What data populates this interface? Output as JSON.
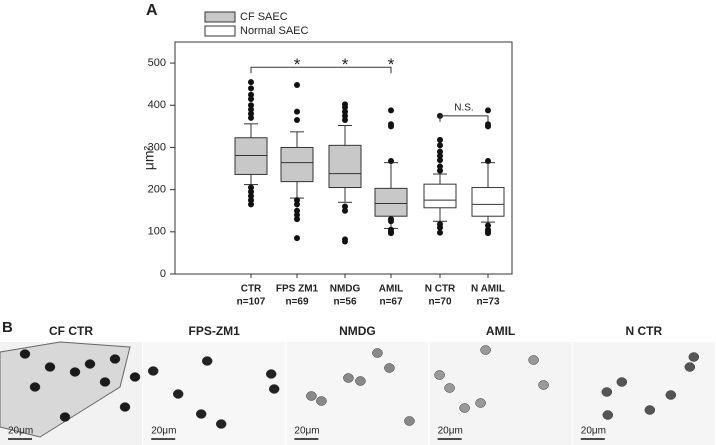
{
  "chart_data": {
    "type": "box",
    "panel_label": "A",
    "y_label": "μm²",
    "categories": [
      "CTR",
      "FPS ZM1",
      "NMDG",
      "AMIL",
      "N CTR",
      "N AMIL"
    ],
    "n_labels": [
      "n=107",
      "n=69",
      "n=56",
      "n=67",
      "n=70",
      "n=73"
    ],
    "ylim": [
      0,
      550
    ],
    "yticks": [
      0,
      100,
      200,
      300,
      400,
      500
    ],
    "series": [
      {
        "name": "CF SAEC",
        "color": "#c8c8c8",
        "boxes": [
          {
            "whisker_low": 212,
            "q1": 236,
            "median": 281,
            "q3": 323,
            "whisker_high": 356,
            "outliers": [
              455,
              440,
              425,
              415,
              400,
              390,
              380,
              370,
              205,
              195,
              185,
              175,
              165
            ]
          },
          {
            "whisker_low": 180,
            "q1": 219,
            "median": 264,
            "q3": 300,
            "whisker_high": 337,
            "outliers": [
              448,
              385,
              365,
              175,
              165,
              150,
              140,
              130,
              85
            ]
          },
          {
            "whisker_low": 170,
            "q1": 205,
            "median": 238,
            "q3": 305,
            "whisker_high": 352,
            "outliers": [
              402,
              395,
              385,
              375,
              365,
              160,
              150,
              82,
              77
            ]
          },
          {
            "whisker_low": 108,
            "q1": 137,
            "median": 167,
            "q3": 203,
            "whisker_high": 264,
            "outliers": [
              388,
              355,
              350,
              268,
              130,
              125,
              105,
              100,
              97
            ]
          },
          null,
          null
        ]
      },
      {
        "name": "Normal SAEC",
        "color": "#ffffff",
        "boxes": [
          null,
          null,
          null,
          null,
          {
            "whisker_low": 125,
            "q1": 157,
            "median": 175,
            "q3": 213,
            "whisker_high": 237,
            "outliers": [
              375,
              318,
              305,
              290,
              280,
              270,
              255,
              245,
              118,
              110,
              98
            ]
          },
          {
            "whisker_low": 123,
            "q1": 137,
            "median": 165,
            "q3": 205,
            "whisker_high": 264,
            "outliers": [
              388,
              355,
              350,
              268,
              115,
              105,
              100,
              97
            ]
          }
        ]
      }
    ],
    "brackets": [
      {
        "from": 0,
        "to": 3,
        "y": 490,
        "marks": [
          {
            "category": 1,
            "text": "*"
          },
          {
            "category": 2,
            "text": "*"
          },
          {
            "category": 3,
            "text": "*"
          }
        ]
      },
      {
        "from": 4,
        "to": 5,
        "y": 375,
        "marks": [
          {
            "category": 4.5,
            "text": "N.S."
          }
        ]
      }
    ]
  },
  "panel_b": {
    "label": "B",
    "images": [
      {
        "title": "CF CTR",
        "scale_bar": "20μm"
      },
      {
        "title": "FPS-ZM1",
        "scale_bar": "20μm"
      },
      {
        "title": "NMDG",
        "scale_bar": "20μm"
      },
      {
        "title": "AMIL",
        "scale_bar": "20μm"
      },
      {
        "title": "N CTR",
        "scale_bar": "20μm"
      }
    ]
  }
}
